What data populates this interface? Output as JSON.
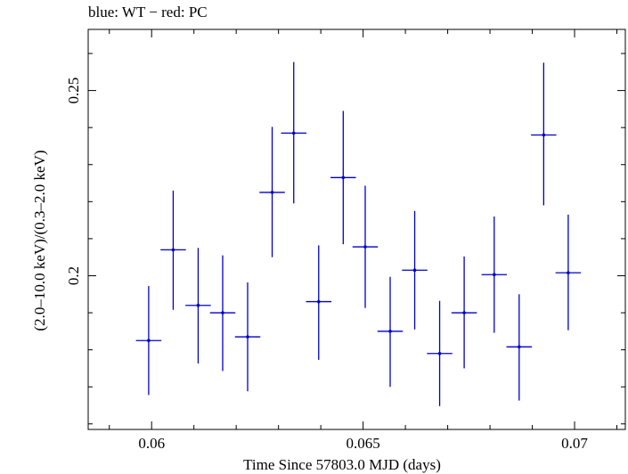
{
  "chart_data": {
    "type": "scatter",
    "title": "blue: WT − red: PC",
    "xlabel": "Time Since 57803.0 MJD (days)",
    "ylabel": "(2.0–10.0 keV)/(0.3–2.0 keV)",
    "xlim": [
      0.0585,
      0.0712
    ],
    "ylim": [
      0.1585,
      0.2665
    ],
    "x_ticks": [
      0.06,
      0.065,
      0.07
    ],
    "x_tick_labels": [
      "0.06",
      "0.065",
      "0.07"
    ],
    "y_ticks": [
      0.2,
      0.25
    ],
    "y_tick_labels": [
      "0.2",
      "0.25"
    ],
    "grid": false,
    "series": [
      {
        "color": "#0000cc",
        "points": [
          {
            "x": 0.05993,
            "y": 0.1825,
            "xerr": 0.0003,
            "yerr_lo": 0.0147,
            "yerr_hi": 0.0147
          },
          {
            "x": 0.06051,
            "y": 0.207,
            "xerr": 0.0003,
            "yerr_lo": 0.0162,
            "yerr_hi": 0.016
          },
          {
            "x": 0.0611,
            "y": 0.192,
            "xerr": 0.0003,
            "yerr_lo": 0.0157,
            "yerr_hi": 0.0155
          },
          {
            "x": 0.06168,
            "y": 0.19,
            "xerr": 0.0003,
            "yerr_lo": 0.0157,
            "yerr_hi": 0.0155
          },
          {
            "x": 0.06227,
            "y": 0.1835,
            "xerr": 0.0003,
            "yerr_lo": 0.0147,
            "yerr_hi": 0.0147
          },
          {
            "x": 0.06285,
            "y": 0.2225,
            "xerr": 0.0003,
            "yerr_lo": 0.0175,
            "yerr_hi": 0.0177
          },
          {
            "x": 0.06336,
            "y": 0.2385,
            "xerr": 0.0003,
            "yerr_lo": 0.019,
            "yerr_hi": 0.0192
          },
          {
            "x": 0.06395,
            "y": 0.193,
            "xerr": 0.0003,
            "yerr_lo": 0.0157,
            "yerr_hi": 0.0152
          },
          {
            "x": 0.06453,
            "y": 0.2265,
            "xerr": 0.0003,
            "yerr_lo": 0.018,
            "yerr_hi": 0.018
          },
          {
            "x": 0.06505,
            "y": 0.2078,
            "xerr": 0.0003,
            "yerr_lo": 0.0165,
            "yerr_hi": 0.0165
          },
          {
            "x": 0.06564,
            "y": 0.185,
            "xerr": 0.0003,
            "yerr_lo": 0.015,
            "yerr_hi": 0.0147
          },
          {
            "x": 0.06622,
            "y": 0.2015,
            "xerr": 0.0003,
            "yerr_lo": 0.016,
            "yerr_hi": 0.016
          },
          {
            "x": 0.06681,
            "y": 0.179,
            "xerr": 0.0003,
            "yerr_lo": 0.0142,
            "yerr_hi": 0.0142
          },
          {
            "x": 0.06739,
            "y": 0.19,
            "xerr": 0.0003,
            "yerr_lo": 0.015,
            "yerr_hi": 0.0152
          },
          {
            "x": 0.0681,
            "y": 0.2003,
            "xerr": 0.0003,
            "yerr_lo": 0.0157,
            "yerr_hi": 0.0157
          },
          {
            "x": 0.06869,
            "y": 0.1808,
            "xerr": 0.0003,
            "yerr_lo": 0.0145,
            "yerr_hi": 0.0142
          },
          {
            "x": 0.06927,
            "y": 0.238,
            "xerr": 0.0003,
            "yerr_lo": 0.019,
            "yerr_hi": 0.0195
          },
          {
            "x": 0.06985,
            "y": 0.2008,
            "xerr": 0.0003,
            "yerr_lo": 0.0155,
            "yerr_hi": 0.0157
          }
        ]
      }
    ]
  }
}
